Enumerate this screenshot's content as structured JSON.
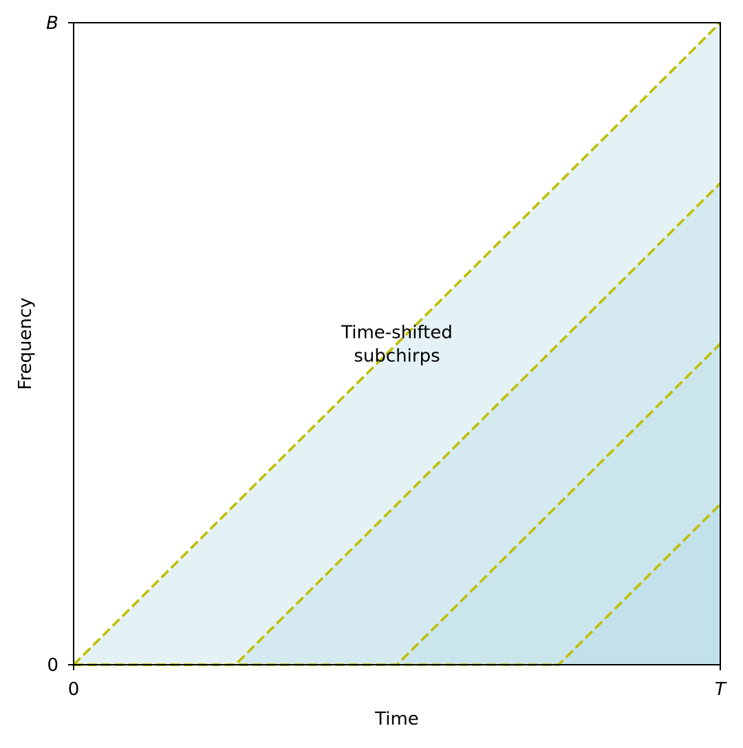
{
  "chart_data": {
    "type": "line",
    "title": "",
    "xlabel": "Time",
    "ylabel": "Frequency",
    "xlim": [
      0,
      1
    ],
    "ylim": [
      0,
      1
    ],
    "x_ticks": [
      {
        "value": 0,
        "label": "0",
        "italic": false
      },
      {
        "value": 1,
        "label": "T",
        "italic": true
      }
    ],
    "y_ticks": [
      {
        "value": 0,
        "label": "0",
        "italic": false
      },
      {
        "value": 1,
        "label": "B",
        "italic": true
      }
    ],
    "grid": false,
    "legend": "none",
    "series": [
      {
        "points": [
          [
            0,
            0
          ],
          [
            1,
            1
          ]
        ],
        "fill_color": "#e5f2f5"
      },
      {
        "points": [
          [
            0,
            0
          ],
          [
            0.25,
            0
          ],
          [
            1,
            0.75
          ]
        ],
        "fill_color": "#d4eaf0"
      },
      {
        "points": [
          [
            0,
            0
          ],
          [
            0.5,
            0
          ],
          [
            1,
            0.5
          ]
        ],
        "fill_color": "#cbe5ed"
      },
      {
        "points": [
          [
            0,
            0
          ],
          [
            0.75,
            0
          ],
          [
            1,
            0.25
          ]
        ],
        "fill_color": "#c2e1ea"
      }
    ],
    "line_color": "#bfbf00",
    "line_style": "dashed",
    "annotations": [
      {
        "text": "Time-shifted\nsubchirps",
        "x": 0.5,
        "y": 0.5
      }
    ]
  }
}
